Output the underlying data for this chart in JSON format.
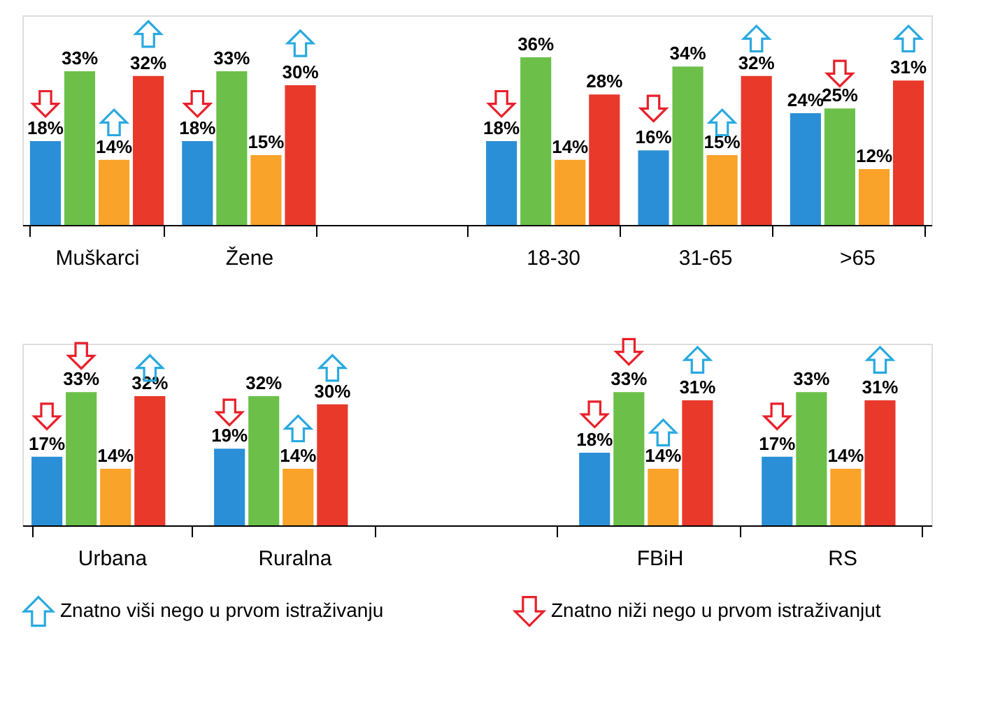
{
  "chart_data": [
    {
      "type": "bar",
      "categories": [
        "Muškarci",
        "Žene",
        null,
        "18-30",
        "31-65",
        ">65"
      ],
      "ylim": [
        0,
        45
      ],
      "tick_labels": "x",
      "grid": false,
      "series": [
        {
          "color": "#2a8fd6",
          "values": [
            18,
            18,
            null,
            18,
            16,
            24
          ],
          "value_labels": [
            "18%",
            "18%",
            null,
            "18%",
            "16%",
            "24%"
          ]
        },
        {
          "color": "#6cc04a",
          "values": [
            33,
            33,
            null,
            36,
            34,
            25
          ],
          "value_labels": [
            "33%",
            "33%",
            null,
            "36%",
            "34%",
            "25%"
          ]
        },
        {
          "color": "#f9a32a",
          "values": [
            14,
            15,
            null,
            14,
            15,
            12
          ],
          "value_labels": [
            "14%",
            "15%",
            null,
            "14%",
            "15%",
            "12%"
          ]
        },
        {
          "color": "#e8392b",
          "values": [
            32,
            30,
            null,
            28,
            32,
            31
          ],
          "value_labels": [
            "32%",
            "30%",
            null,
            "28%",
            "32%",
            "31%"
          ]
        },
        {
          "type": "scatter",
          "values": [
            null,
            null,
            null,
            null,
            null,
            null
          ]
        },
        {
          "type": "scatter",
          "values": [
            null,
            null,
            null,
            null,
            null,
            null
          ]
        },
        {
          "type": "scatter",
          "color": "#29a9e0",
          "values": [
            22,
            null,
            null,
            null,
            22,
            null
          ]
        },
        {
          "type": "scatter",
          "color": "#29a9e0",
          "values": [
            41,
            39,
            null,
            null,
            40,
            40
          ]
        },
        {
          "type": "scatter",
          "color": "#e8202a",
          "values": [
            26,
            26,
            null,
            26,
            25,
            null
          ]
        },
        {
          "type": "scatter",
          "color": "#e8202a",
          "values": [
            null,
            null,
            null,
            null,
            null,
            32.5
          ]
        },
        {
          "type": "scatter",
          "values": [
            null,
            null,
            null,
            null,
            null,
            null
          ]
        },
        {
          "type": "scatter",
          "values": [
            null,
            null,
            null,
            null,
            null,
            null
          ]
        }
      ]
    },
    {
      "type": "bar",
      "categories": [
        "Urbana",
        "Ruralna",
        null,
        "FBiH",
        "RS"
      ],
      "ylim": [
        0,
        45
      ],
      "tick_labels": "x",
      "grid": false,
      "legend": "bottom",
      "series": [
        {
          "color": "#2a8fd6",
          "values": [
            17,
            19,
            null,
            18,
            17
          ],
          "value_labels": [
            "17%",
            "19%",
            null,
            "18%",
            "17%"
          ]
        },
        {
          "color": "#6cc04a",
          "values": [
            33,
            32,
            null,
            33,
            33
          ],
          "value_labels": [
            "33%",
            "32%",
            null,
            "33%",
            "33%"
          ]
        },
        {
          "color": "#f9a32a",
          "values": [
            14,
            14,
            null,
            14,
            14
          ],
          "value_labels": [
            "14%",
            "14%",
            null,
            "14%",
            "14%"
          ]
        },
        {
          "color": "#e8392b",
          "values": [
            32,
            30,
            null,
            31,
            31
          ],
          "value_labels": [
            "32%",
            "30%",
            null,
            "31%",
            "31%"
          ]
        },
        {
          "type": "scatter",
          "values": [
            null,
            null,
            null,
            null,
            null
          ]
        },
        {
          "type": "scatter",
          "values": [
            null,
            null,
            null,
            null,
            null
          ]
        },
        {
          "type": "scatter",
          "name": "Znatno viši nego u prvom istraživanju",
          "color": "#29a9e0",
          "values": [
            null,
            24,
            null,
            23,
            null
          ]
        },
        {
          "type": "scatter",
          "color": "#29a9e0",
          "values": [
            39,
            39,
            null,
            41,
            41
          ]
        },
        {
          "type": "scatter",
          "name": "Znatno niži nego u prvom istraživanjut",
          "color": "#e8202a",
          "values": [
            27,
            28,
            null,
            27.5,
            27
          ]
        },
        {
          "type": "scatter",
          "color": "#e8202a",
          "values": [
            42,
            null,
            null,
            43,
            null
          ]
        },
        {
          "type": "scatter",
          "values": [
            null,
            null,
            null,
            null,
            null
          ]
        },
        {
          "type": "scatter",
          "values": [
            null,
            null,
            null,
            null,
            null
          ]
        }
      ]
    }
  ]
}
